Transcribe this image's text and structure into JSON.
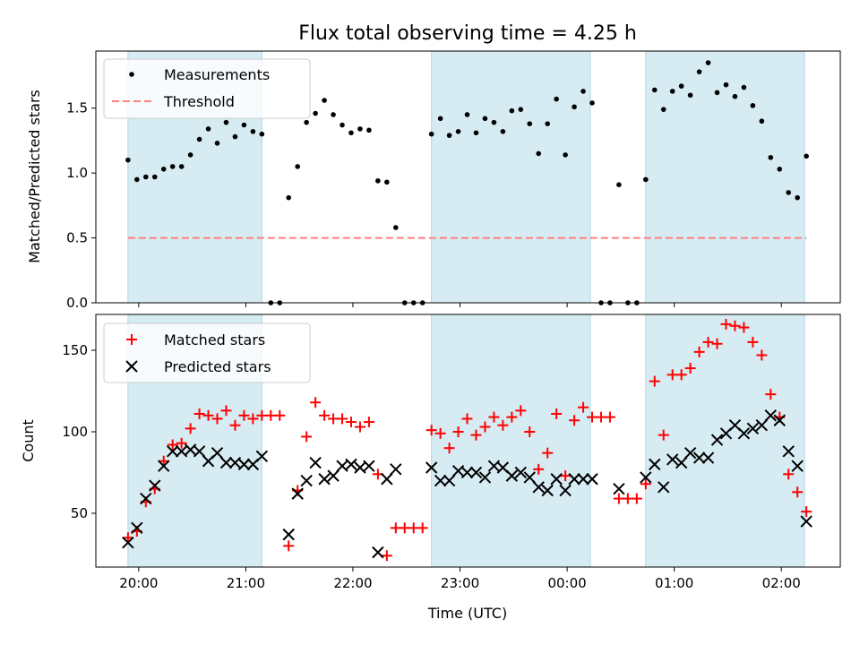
{
  "chart_data": [
    {
      "type": "scatter",
      "title": "Flux total observing time = 4.25 h",
      "ylabel": "Matched/Predicted stars",
      "xlabel": "",
      "x_unit": "time of day (UTC)",
      "xlim": [
        "19:36",
        "02:33"
      ],
      "ylim": [
        0,
        1.94
      ],
      "yticks": [
        0.0,
        0.5,
        1.0,
        1.5
      ],
      "grid": false,
      "legend_position": "top-left",
      "shaded_intervals": [
        [
          "19:54",
          "21:09"
        ],
        [
          "22:44",
          "00:13"
        ],
        [
          "00:44",
          "02:13"
        ]
      ],
      "shade_color": "#add8e6",
      "series": [
        {
          "name": "Measurements",
          "marker": "dot",
          "color": "#000000",
          "x": [
            "19:54",
            "19:59",
            "20:04",
            "20:09",
            "20:14",
            "20:19",
            "20:24",
            "20:29",
            "20:34",
            "20:39",
            "20:44",
            "20:49",
            "20:54",
            "20:59",
            "21:04",
            "21:09",
            "21:14",
            "21:19",
            "21:24",
            "21:29",
            "21:34",
            "21:39",
            "21:44",
            "21:49",
            "21:54",
            "21:59",
            "22:04",
            "22:09",
            "22:14",
            "22:19",
            "22:24",
            "22:29",
            "22:34",
            "22:39",
            "22:44",
            "22:49",
            "22:54",
            "22:59",
            "23:04",
            "23:09",
            "23:14",
            "23:19",
            "23:24",
            "23:29",
            "23:34",
            "23:39",
            "23:44",
            "23:49",
            "23:54",
            "23:59",
            "00:04",
            "00:09",
            "00:14",
            "00:19",
            "00:24",
            "00:29",
            "00:34",
            "00:39",
            "00:44",
            "00:49",
            "00:54",
            "00:59",
            "01:04",
            "01:09",
            "01:14",
            "01:19",
            "01:24",
            "01:29",
            "01:34",
            "01:39",
            "01:44",
            "01:49",
            "01:54",
            "01:59",
            "02:04",
            "02:09",
            "02:14"
          ],
          "y": [
            1.1,
            0.95,
            0.97,
            0.97,
            1.03,
            1.05,
            1.05,
            1.14,
            1.26,
            1.34,
            1.23,
            1.39,
            1.28,
            1.37,
            1.32,
            1.3,
            0.0,
            0.0,
            0.81,
            1.05,
            1.39,
            1.46,
            1.56,
            1.45,
            1.37,
            1.31,
            1.34,
            1.33,
            0.94,
            0.93,
            0.58,
            0.0,
            0.0,
            0.0,
            1.3,
            1.42,
            1.29,
            1.32,
            1.45,
            1.31,
            1.42,
            1.39,
            1.32,
            1.48,
            1.49,
            1.38,
            1.15,
            1.38,
            1.57,
            1.14,
            1.51,
            1.63,
            1.54,
            0.0,
            0.0,
            0.91,
            0.0,
            0.0,
            0.95,
            1.64,
            1.49,
            1.63,
            1.67,
            1.6,
            1.78,
            1.85,
            1.62,
            1.68,
            1.59,
            1.66,
            1.52,
            1.4,
            1.12,
            1.03,
            0.85,
            0.81,
            1.13
          ]
        },
        {
          "name": "Threshold",
          "marker": "dashed-line",
          "color": "#ff7f7f",
          "y": 0.5
        }
      ]
    },
    {
      "type": "scatter",
      "title": "",
      "ylabel": "Count",
      "xlabel": "Time (UTC)",
      "x_unit": "time of day (UTC)",
      "xlim": [
        "19:36",
        "02:33"
      ],
      "ylim": [
        17,
        172
      ],
      "yticks": [
        50,
        100,
        150
      ],
      "xticks": [
        "20:00",
        "21:00",
        "22:00",
        "23:00",
        "00:00",
        "01:00",
        "02:00"
      ],
      "grid": false,
      "legend_position": "top-left",
      "shaded_intervals": [
        [
          "19:54",
          "21:09"
        ],
        [
          "22:44",
          "00:13"
        ],
        [
          "00:44",
          "02:13"
        ]
      ],
      "shade_color": "#add8e6",
      "series": [
        {
          "name": "Matched stars",
          "marker": "plus",
          "color": "#ff0000",
          "x": [
            "19:54",
            "19:59",
            "20:04",
            "20:09",
            "20:14",
            "20:19",
            "20:24",
            "20:29",
            "20:34",
            "20:39",
            "20:44",
            "20:49",
            "20:54",
            "20:59",
            "21:04",
            "21:09",
            "21:14",
            "21:19",
            "21:24",
            "21:29",
            "21:34",
            "21:39",
            "21:44",
            "21:49",
            "21:54",
            "21:59",
            "22:04",
            "22:09",
            "22:14",
            "22:19",
            "22:24",
            "22:29",
            "22:34",
            "22:39",
            "22:44",
            "22:49",
            "22:54",
            "22:59",
            "23:04",
            "23:09",
            "23:14",
            "23:19",
            "23:24",
            "23:29",
            "23:34",
            "23:39",
            "23:44",
            "23:49",
            "23:54",
            "23:59",
            "00:04",
            "00:09",
            "00:14",
            "00:19",
            "00:24",
            "00:29",
            "00:34",
            "00:39",
            "00:44",
            "00:49",
            "00:54",
            "00:59",
            "01:04",
            "01:09",
            "01:14",
            "01:19",
            "01:24",
            "01:29",
            "01:34",
            "01:39",
            "01:44",
            "01:49",
            "01:54",
            "01:59",
            "02:04",
            "02:09",
            "02:14"
          ],
          "y": [
            35,
            39,
            57,
            65,
            82,
            92,
            93,
            102,
            111,
            110,
            108,
            113,
            104,
            110,
            108,
            110,
            110,
            110,
            30,
            64,
            97,
            118,
            110,
            108,
            108,
            106,
            103,
            106,
            74,
            24,
            41,
            41,
            41,
            41,
            101,
            99,
            90,
            100,
            108,
            98,
            103,
            109,
            104,
            109,
            113,
            100,
            77,
            87,
            111,
            73,
            107,
            115,
            109,
            109,
            109,
            59,
            59,
            59,
            68,
            131,
            98,
            135,
            135,
            139,
            149,
            155,
            154,
            166,
            165,
            164,
            155,
            147,
            123,
            109,
            74,
            63,
            51
          ]
        },
        {
          "name": "Predicted stars",
          "marker": "x",
          "color": "#000000",
          "x": [
            "19:54",
            "19:59",
            "20:04",
            "20:09",
            "20:14",
            "20:19",
            "20:24",
            "20:29",
            "20:34",
            "20:39",
            "20:44",
            "20:49",
            "20:54",
            "20:59",
            "21:04",
            "21:09",
            "21:24",
            "21:29",
            "21:34",
            "21:39",
            "21:44",
            "21:49",
            "21:54",
            "21:59",
            "22:04",
            "22:09",
            "22:14",
            "22:19",
            "22:24",
            "22:44",
            "22:49",
            "22:54",
            "22:59",
            "23:04",
            "23:09",
            "23:14",
            "23:19",
            "23:24",
            "23:29",
            "23:34",
            "23:39",
            "23:44",
            "23:49",
            "23:54",
            "23:59",
            "00:04",
            "00:09",
            "00:14",
            "00:29",
            "00:44",
            "00:49",
            "00:54",
            "00:59",
            "01:04",
            "01:09",
            "01:14",
            "01:19",
            "01:24",
            "01:29",
            "01:34",
            "01:39",
            "01:44",
            "01:49",
            "01:54",
            "01:59",
            "02:04",
            "02:09",
            "02:14"
          ],
          "y": [
            32,
            41,
            59,
            67,
            79,
            88,
            88,
            89,
            88,
            82,
            87,
            81,
            81,
            80,
            80,
            85,
            37,
            62,
            70,
            81,
            71,
            73,
            79,
            80,
            78,
            79,
            26,
            71,
            77,
            78,
            70,
            70,
            76,
            75,
            75,
            72,
            79,
            78,
            73,
            75,
            72,
            66,
            64,
            71,
            64,
            71,
            71,
            71,
            65,
            72,
            80,
            66,
            83,
            81,
            87,
            84,
            84,
            95,
            99,
            104,
            99,
            102,
            104,
            110,
            107,
            88,
            79,
            45
          ]
        }
      ]
    }
  ]
}
